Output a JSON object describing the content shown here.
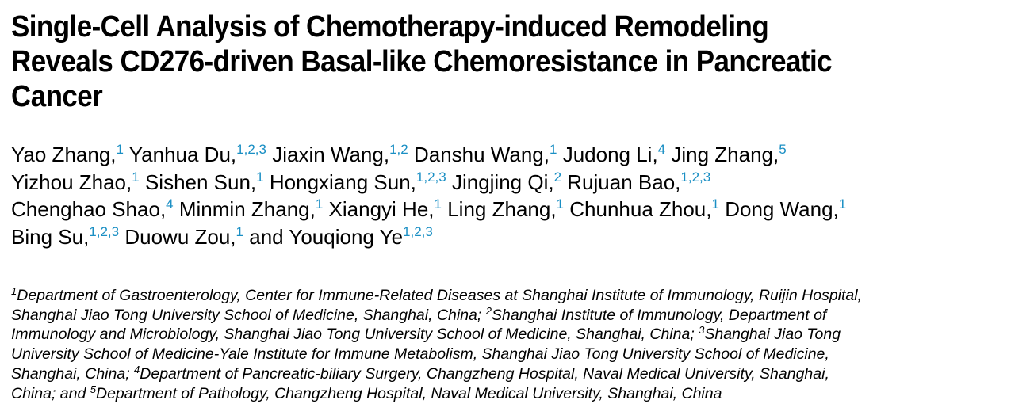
{
  "paper": {
    "title_lines": [
      "Single-Cell Analysis of Chemotherapy-induced Remodeling",
      "Reveals CD276-driven Basal-like Chemoresistance in Pancreatic",
      "Cancer"
    ],
    "authors": [
      {
        "name": "Yao Zhang,",
        "sup": "1"
      },
      {
        "name": "Yanhua Du,",
        "sup": "1,2,3"
      },
      {
        "name": "Jiaxin Wang,",
        "sup": "1,2"
      },
      {
        "name": "Danshu Wang,",
        "sup": "1"
      },
      {
        "name": "Judong Li,",
        "sup": "4"
      },
      {
        "name": "Jing Zhang,",
        "sup": "5"
      },
      {
        "name": "Yizhou Zhao,",
        "sup": "1"
      },
      {
        "name": "Sishen Sun,",
        "sup": "1"
      },
      {
        "name": "Hongxiang Sun,",
        "sup": "1,2,3"
      },
      {
        "name": "Jingjing Qi,",
        "sup": "2"
      },
      {
        "name": "Rujuan Bao,",
        "sup": "1,2,3"
      },
      {
        "name": "Chenghao Shao,",
        "sup": "4"
      },
      {
        "name": "Minmin Zhang,",
        "sup": "1"
      },
      {
        "name": "Xiangyi He,",
        "sup": "1"
      },
      {
        "name": "Ling Zhang,",
        "sup": "1"
      },
      {
        "name": "Chunhua Zhou,",
        "sup": "1"
      },
      {
        "name": "Dong Wang,",
        "sup": "1"
      },
      {
        "name": "Bing Su,",
        "sup": "1,2,3"
      },
      {
        "name": "Duowu Zou,",
        "sup": "1"
      },
      {
        "name": "and Youqiong Ye",
        "sup": "1,2,3"
      }
    ],
    "affiliation_lines": [
      [
        {
          "sup": "1",
          "text": "Department of Gastroenterology, Center for Immune-Related Diseases at Shanghai Institute of Immunology, Ruijin Hospital,"
        }
      ],
      [
        {
          "sup": "",
          "text": "Shanghai Jiao Tong University School of Medicine, Shanghai, China; "
        },
        {
          "sup": "2",
          "text": "Shanghai Institute of Immunology, Department of"
        }
      ],
      [
        {
          "sup": "",
          "text": "Immunology and Microbiology, Shanghai Jiao Tong University School of Medicine, Shanghai, China; "
        },
        {
          "sup": "3",
          "text": "Shanghai Jiao Tong"
        }
      ],
      [
        {
          "sup": "",
          "text": "University School of Medicine-Yale Institute for Immune Metabolism, Shanghai Jiao Tong University School of Medicine,"
        }
      ],
      [
        {
          "sup": "",
          "text": "Shanghai, China; "
        },
        {
          "sup": "4",
          "text": "Department of Pancreatic-biliary Surgery, Changzheng Hospital, Naval Medical University, Shanghai,"
        }
      ],
      [
        {
          "sup": "",
          "text": "China; and "
        },
        {
          "sup": "5",
          "text": "Department of Pathology, Changzheng Hospital, Naval Medical University, Shanghai, China"
        }
      ]
    ]
  },
  "colors": {
    "text": "#000000",
    "superscript_link": "#1a8fc4"
  }
}
